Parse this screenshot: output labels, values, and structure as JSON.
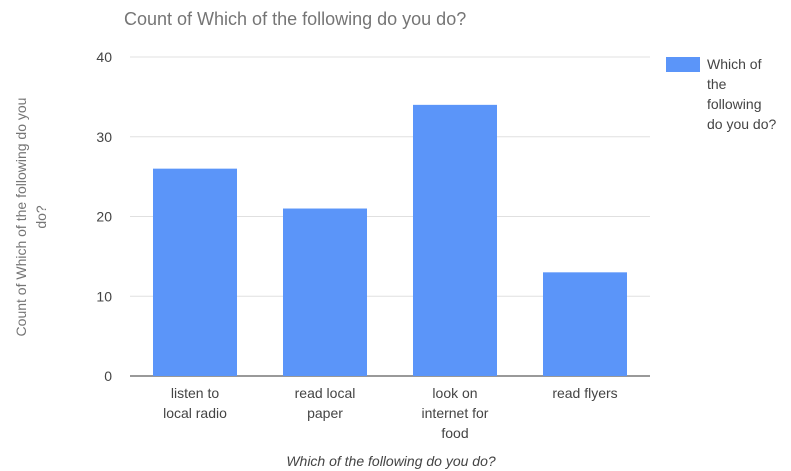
{
  "chart_data": {
    "type": "bar",
    "title": "Count of Which of the following do you do?",
    "xlabel": "Which of the following do you do?",
    "ylabel": "Count of Which of the following do you do?",
    "categories": [
      "listen to local radio",
      "read local paper",
      "look on internet for food",
      "read flyers"
    ],
    "series": [
      {
        "name": "Which of the following do you do?",
        "values": [
          26,
          21,
          34,
          13
        ]
      }
    ],
    "ylim": [
      0,
      40
    ],
    "yticks": [
      0,
      10,
      20,
      30,
      40
    ],
    "grid": true,
    "legend": "right",
    "colors": {
      "bar": "#5b95f9",
      "grid": "#e0e0e0",
      "baseline": "#333333"
    }
  }
}
